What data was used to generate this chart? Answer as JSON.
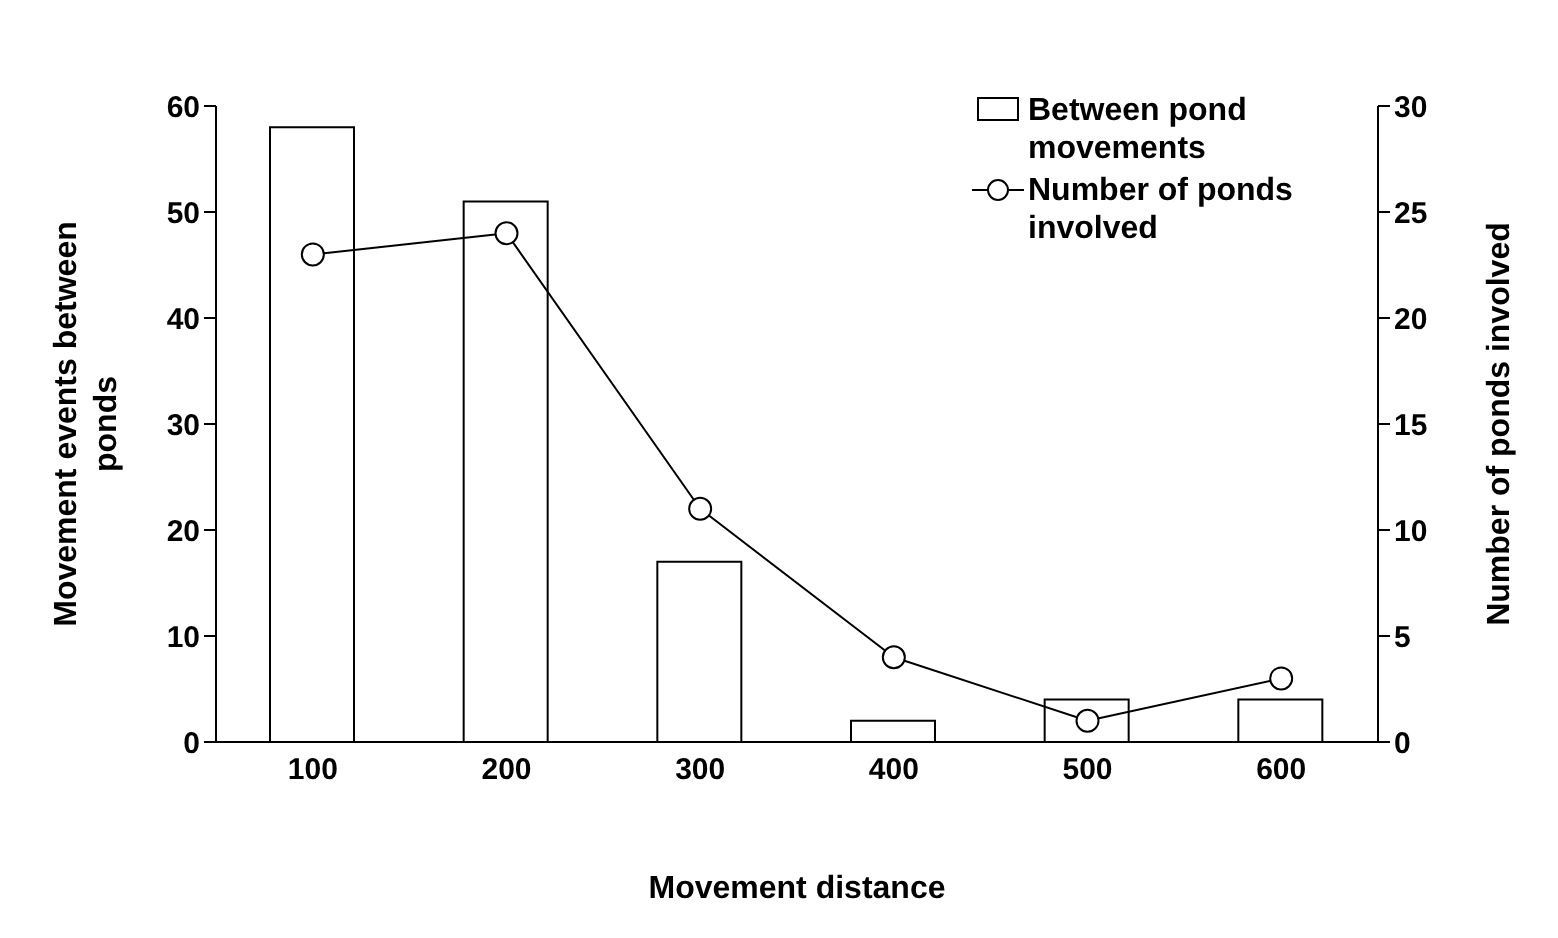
{
  "chart_data": {
    "type": "bar",
    "xlabel": "Movement distance",
    "ylabel": "Movement events between ponds",
    "y2label": "Number of ponds involved",
    "categories": [
      "100",
      "200",
      "300",
      "400",
      "500",
      "600"
    ],
    "series": [
      {
        "name": "Between pond movements",
        "color": "#ffffff",
        "values": [
          58,
          51,
          17,
          2,
          4,
          4
        ]
      },
      {
        "name": "Number of ponds involved",
        "type": "line",
        "axis": "y2",
        "color": "#000000",
        "marker": "circle",
        "values": [
          23,
          24,
          11,
          4,
          1,
          3
        ]
      }
    ],
    "ylim": [
      0,
      60
    ],
    "yticks": [
      0,
      10,
      20,
      30,
      40,
      50,
      60
    ],
    "y2lim": [
      0,
      30
    ],
    "y2ticks": [
      0,
      5,
      10,
      15,
      20,
      25,
      30
    ],
    "grid": false,
    "legend": "top right"
  }
}
